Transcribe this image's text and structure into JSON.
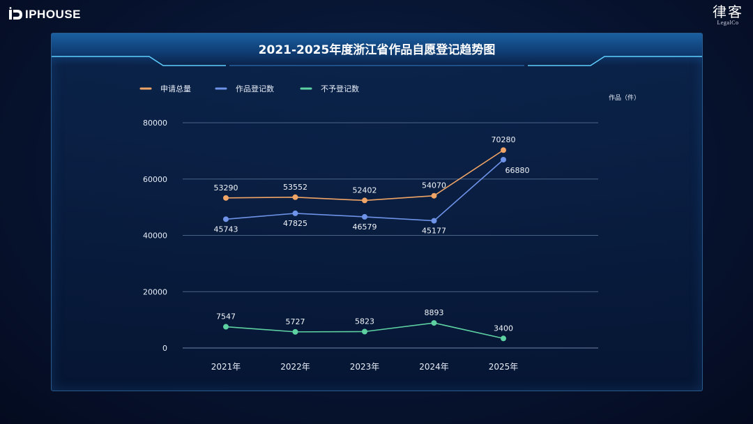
{
  "brand": {
    "name": "IPHOUSE"
  },
  "corner_logo": {
    "cn": "律客",
    "en": "LegalCo"
  },
  "chart_data": {
    "type": "line",
    "title": "2021-2025年度浙江省作品自愿登记趋势图",
    "ylabel": "作品（件）",
    "categories": [
      "2021年",
      "2022年",
      "2023年",
      "2024年",
      "2025年"
    ],
    "ylim": [
      0,
      80000
    ],
    "yticks": [
      0,
      20000,
      40000,
      60000,
      80000
    ],
    "grid": true,
    "legend_position": "top-left",
    "series": [
      {
        "name": "申请总量",
        "color": "#f0a465",
        "values": [
          53290,
          53552,
          52402,
          54070,
          70280
        ],
        "label_pos": "above"
      },
      {
        "name": "作品登记数",
        "color": "#6f93e8",
        "values": [
          45743,
          47825,
          46579,
          45177,
          66880
        ],
        "label_pos": "below"
      },
      {
        "name": "不予登记数",
        "color": "#5ed1a2",
        "values": [
          7547,
          5727,
          5823,
          8893,
          3400
        ],
        "label_pos": "above"
      }
    ]
  }
}
